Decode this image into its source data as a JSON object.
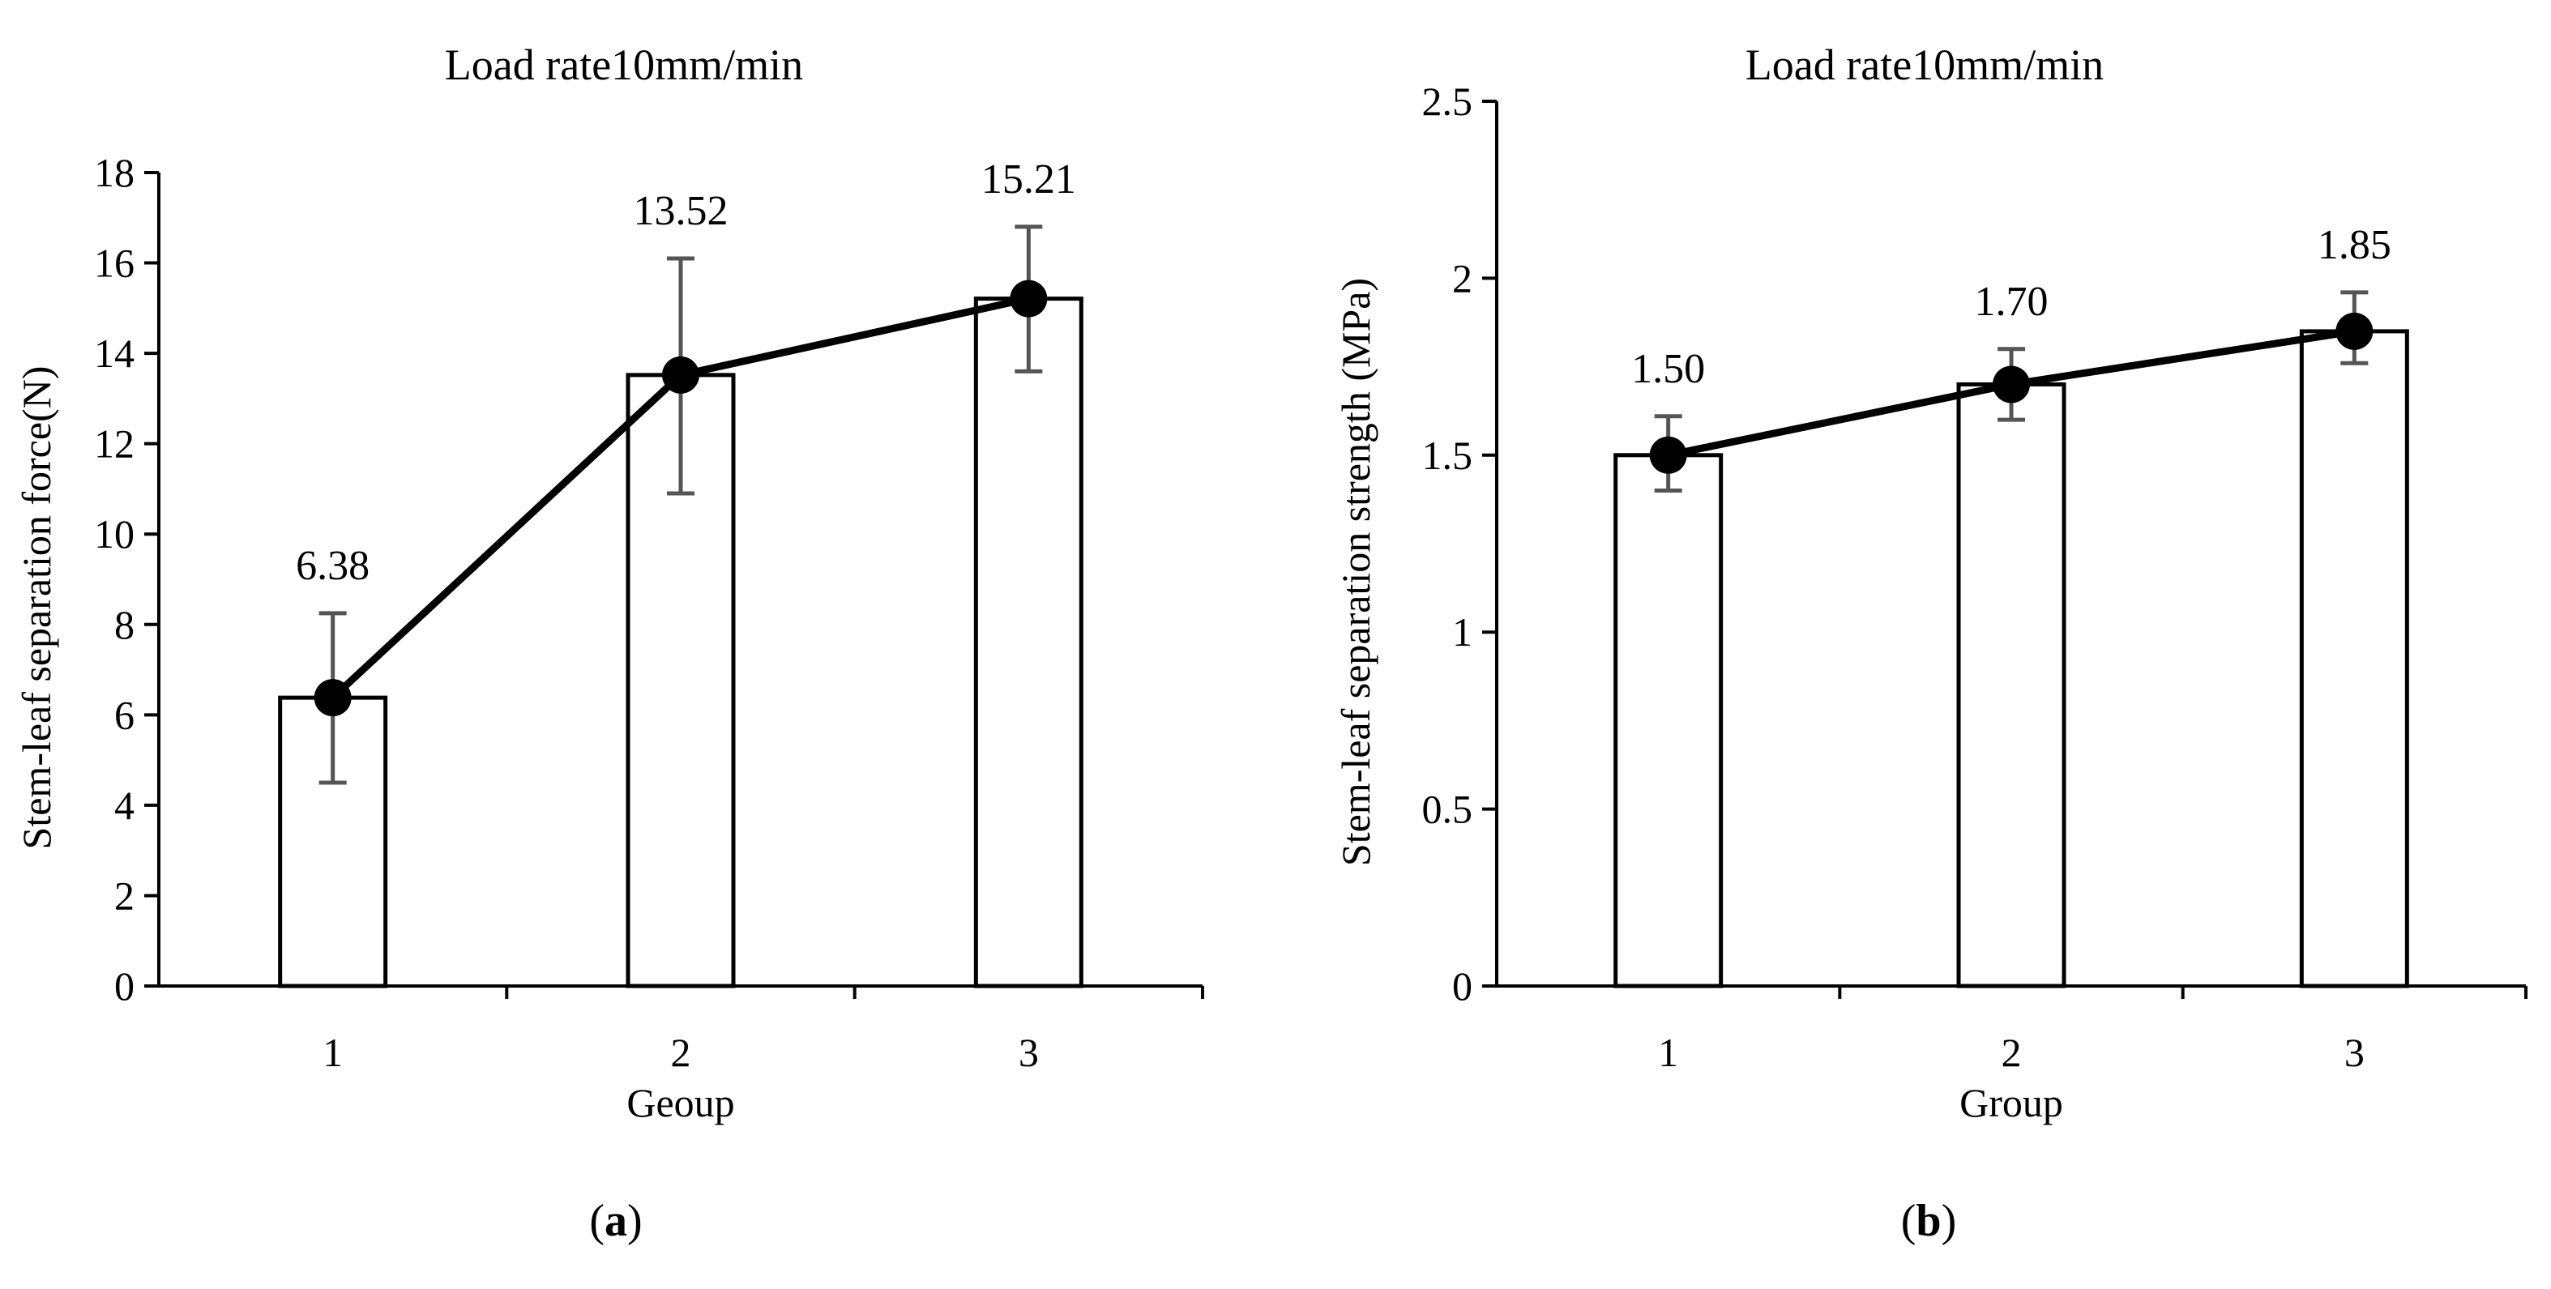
{
  "chart_data": [
    {
      "type": "bar",
      "overlay": "line",
      "panel": "(a)",
      "caption_letter": "a",
      "title": "Load rate10mm/min",
      "xlabel": "Geoup",
      "ylabel": "Stem-leaf separation force(N)",
      "categories": [
        "1",
        "2",
        "3"
      ],
      "values": [
        6.38,
        13.52,
        15.21
      ],
      "error_low": [
        4.5,
        10.9,
        13.6
      ],
      "error_high": [
        8.25,
        16.1,
        16.8
      ],
      "data_labels": [
        "6.38",
        "13.52",
        "15.21"
      ],
      "ylim": [
        0,
        18
      ],
      "yticks": [
        0,
        2,
        4,
        6,
        8,
        10,
        12,
        14,
        16,
        18
      ],
      "ytick_labels": [
        "0",
        "2",
        "4",
        "6",
        "8",
        "10",
        "12",
        "14",
        "16",
        "18"
      ]
    },
    {
      "type": "bar",
      "overlay": "line",
      "panel": "(b)",
      "caption_letter": "b",
      "title": "Load rate10mm/min",
      "xlabel": "Group",
      "ylabel": "Stem-leaf separation strength (MPa)",
      "categories": [
        "1",
        "2",
        "3"
      ],
      "values": [
        1.5,
        1.7,
        1.85
      ],
      "error_low": [
        1.4,
        1.6,
        1.76
      ],
      "error_high": [
        1.61,
        1.8,
        1.96
      ],
      "data_labels": [
        "1.50",
        "1.70",
        "1.85"
      ],
      "ylim": [
        0,
        2.5
      ],
      "yticks": [
        0,
        0.5,
        1,
        1.5,
        2,
        2.5
      ],
      "ytick_labels": [
        "0",
        "0.5",
        "1",
        "1.5",
        "2",
        "2.5"
      ]
    }
  ],
  "colors": {
    "bar_fill": "#ffffff",
    "bar_stroke": "#000000",
    "line": "#000000",
    "marker": "#000000",
    "error_bar": "#555555",
    "axis": "#000000"
  }
}
